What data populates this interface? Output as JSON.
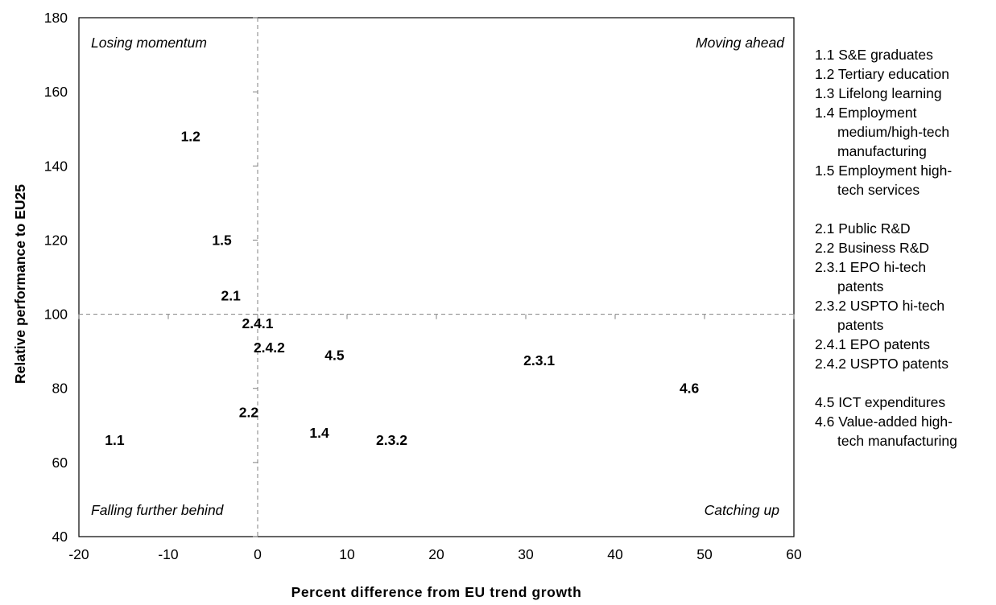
{
  "chart_data": {
    "type": "scatter",
    "title": "",
    "xlabel": "Percent difference from EU trend growth",
    "ylabel": "Relative performance to EU25",
    "xlim": [
      -20,
      60
    ],
    "ylim": [
      40,
      180
    ],
    "x_ticks": [
      -20,
      -10,
      0,
      10,
      20,
      30,
      40,
      50,
      60
    ],
    "y_ticks": [
      40,
      60,
      80,
      100,
      120,
      140,
      160,
      180
    ],
    "reference_lines": {
      "x": 0,
      "y": 100
    },
    "quadrant_labels": {
      "top_left": "Losing momentum",
      "top_right": "Moving ahead",
      "bottom_left": "Falling further behind",
      "bottom_right": "Catching up"
    },
    "points": [
      {
        "label": "1.1",
        "x": -16,
        "y": 66
      },
      {
        "label": "1.2",
        "x": -7.5,
        "y": 148
      },
      {
        "label": "1.5",
        "x": -4,
        "y": 120
      },
      {
        "label": "2.1",
        "x": -3,
        "y": 105
      },
      {
        "label": "2.4.1",
        "x": 0,
        "y": 97.5
      },
      {
        "label": "2.4.2",
        "x": 1.3,
        "y": 91
      },
      {
        "label": "2.2",
        "x": -1,
        "y": 73.5
      },
      {
        "label": "4.5",
        "x": 8.6,
        "y": 89
      },
      {
        "label": "1.4",
        "x": 6.9,
        "y": 68
      },
      {
        "label": "2.3.2",
        "x": 15,
        "y": 66
      },
      {
        "label": "2.3.1",
        "x": 31.5,
        "y": 87.5
      },
      {
        "label": "4.6",
        "x": 48.3,
        "y": 80
      }
    ],
    "grid": false
  },
  "legend": {
    "groups": [
      [
        {
          "line1": "1.1 S&E graduates"
        },
        {
          "line1": "1.2 Tertiary education"
        },
        {
          "line1": "1.3 Lifelong learning"
        },
        {
          "line1": "1.4 Employment",
          "cont": [
            "medium/high-tech",
            "manufacturing"
          ]
        },
        {
          "line1": "1.5 Employment high-",
          "cont": [
            "tech services"
          ]
        }
      ],
      [
        {
          "line1": "2.1 Public R&D"
        },
        {
          "line1": "2.2 Business R&D"
        },
        {
          "line1": "2.3.1 EPO hi-tech",
          "cont": [
            "patents"
          ]
        },
        {
          "line1": "2.3.2 USPTO hi-tech",
          "cont": [
            "patents"
          ]
        },
        {
          "line1": "2.4.1 EPO patents"
        },
        {
          "line1": "2.4.2 USPTO patents"
        }
      ],
      [
        {
          "line1": "4.5 ICT expenditures"
        },
        {
          "line1": "4.6 Value-added high-",
          "cont": [
            "tech manufacturing"
          ]
        }
      ]
    ]
  }
}
